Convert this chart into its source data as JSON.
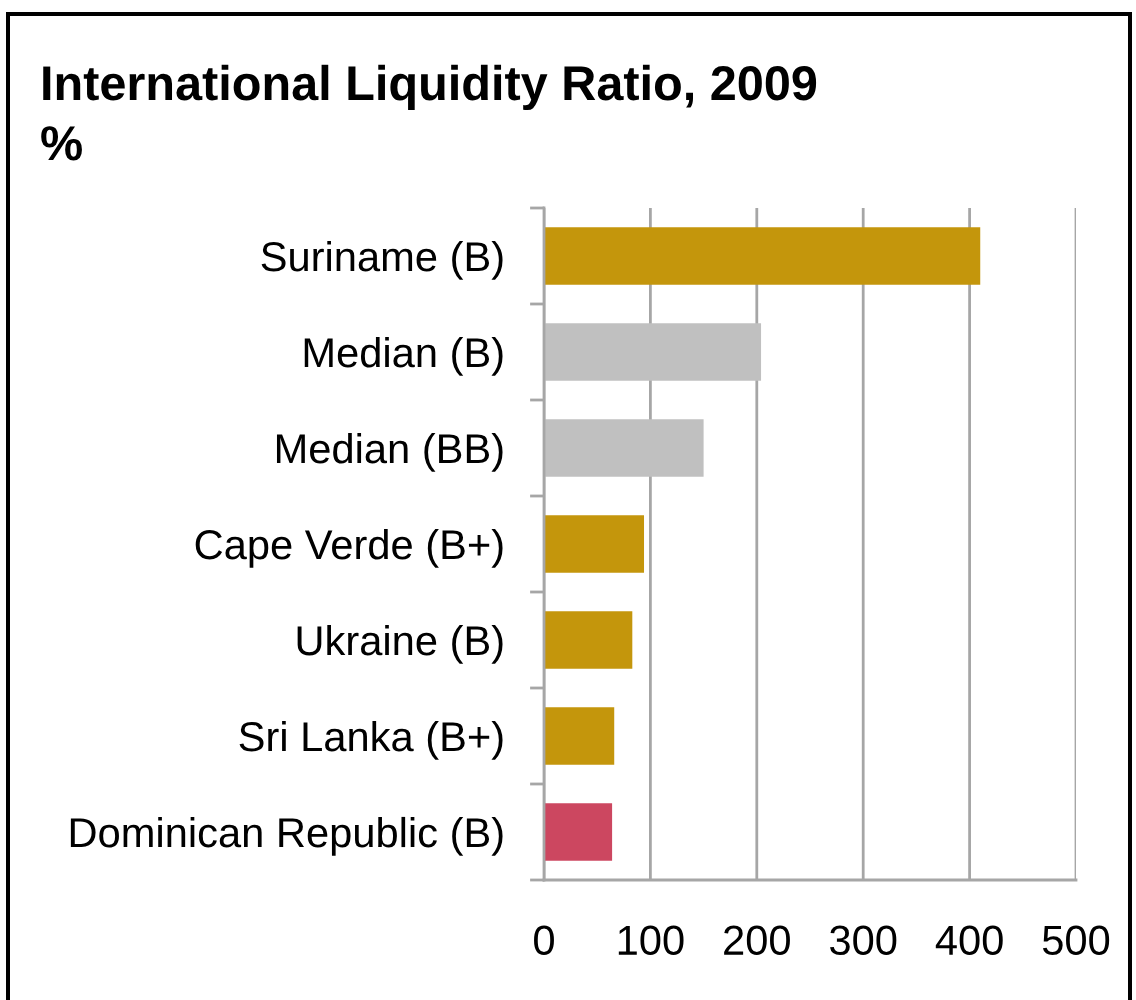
{
  "chart_data": {
    "type": "bar",
    "orientation": "horizontal",
    "title": "International Liquidity Ratio, 2009",
    "subtitle": "%",
    "categories": [
      "Suriname (B)",
      "Median (B)",
      "Median (BB)",
      "Cape Verde (B+)",
      "Ukraine (B)",
      "Sri Lanka (B+)",
      "Dominican Republic (B)"
    ],
    "values": [
      410,
      204,
      150,
      94,
      83,
      66,
      64
    ],
    "colors": [
      "#c4960c",
      "#c0c0c0",
      "#c0c0c0",
      "#c4960c",
      "#c4960c",
      "#c4960c",
      "#cc4760"
    ],
    "xlim": [
      0,
      500
    ],
    "xticks": [
      0,
      100,
      200,
      300,
      400,
      500
    ],
    "grid": "x"
  }
}
